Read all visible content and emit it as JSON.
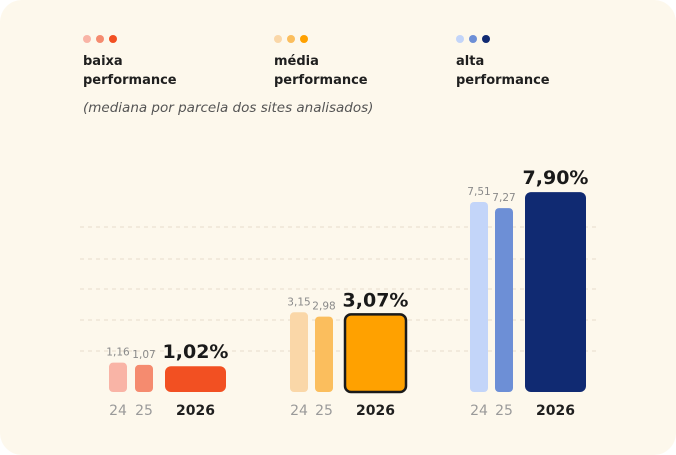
{
  "legend": [
    {
      "line1": "baixa",
      "line2": "performance",
      "colors": [
        "#f9b4a6",
        "#f58b6f",
        "#f25022"
      ]
    },
    {
      "line1": "média",
      "line2": "performance",
      "colors": [
        "#fad7a8",
        "#fbbe5d",
        "#ffa100"
      ]
    },
    {
      "line1": "alta",
      "line2": "performance",
      "colors": [
        "#c3d5f9",
        "#6d8fd6",
        "#102a72"
      ]
    }
  ],
  "subtitle": "(mediana por parcela dos sites analisados)",
  "chart_data": {
    "type": "bar",
    "categories": [
      "24",
      "25",
      "2026"
    ],
    "grid": true,
    "series": [
      {
        "name": "baixa performance",
        "values": [
          1.16,
          1.07,
          1.02
        ],
        "labels": [
          "1,16",
          "1,07",
          "1,02%"
        ],
        "colors": [
          "#f9b4a6",
          "#f58b6f",
          "#f25022"
        ]
      },
      {
        "name": "média performance",
        "values": [
          3.15,
          2.98,
          3.07
        ],
        "labels": [
          "3,15",
          "2,98",
          "3,07%"
        ],
        "colors": [
          "#fad7a8",
          "#fbbe5d",
          "#ffa100"
        ]
      },
      {
        "name": "alta performance",
        "values": [
          7.51,
          7.27,
          7.9
        ],
        "labels": [
          "7,51",
          "7,27",
          "7,90%"
        ],
        "colors": [
          "#c3d5f9",
          "#6d8fd6",
          "#102a72"
        ]
      }
    ]
  }
}
